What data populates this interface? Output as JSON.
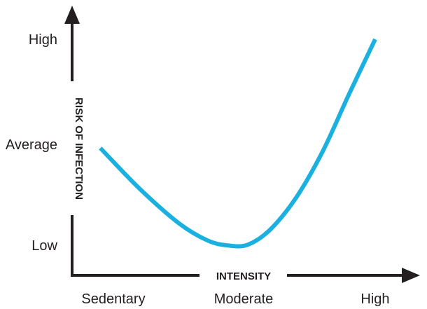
{
  "chart_data": {
    "type": "line",
    "xlabel": "INTENSITY",
    "ylabel": "RISK OF INFECTION",
    "x_categories": [
      "Sedentary",
      "Moderate",
      "High"
    ],
    "y_categories": [
      "Low",
      "Average",
      "High"
    ],
    "series": [
      {
        "color": "#1ab0e0",
        "points": [
          {
            "x": -0.1,
            "y": 0.95
          },
          {
            "x": 0.2,
            "y": 0.55
          },
          {
            "x": 0.5,
            "y": 0.21
          },
          {
            "x": 0.72,
            "y": 0.04
          },
          {
            "x": 0.88,
            "y": -0.01
          },
          {
            "x": 1.03,
            "y": 0.0
          },
          {
            "x": 1.2,
            "y": 0.15
          },
          {
            "x": 1.4,
            "y": 0.47
          },
          {
            "x": 1.6,
            "y": 0.92
          },
          {
            "x": 1.8,
            "y": 1.48
          },
          {
            "x": 2.0,
            "y": 2.02
          }
        ]
      }
    ]
  }
}
